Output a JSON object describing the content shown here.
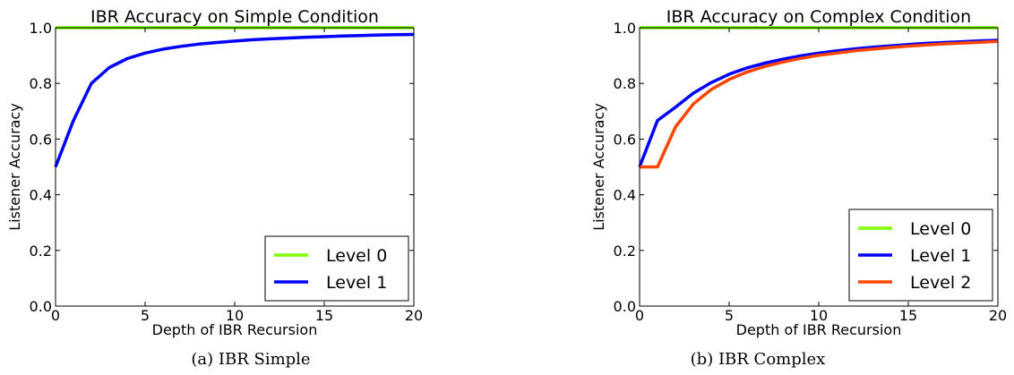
{
  "figures": [
    {
      "caption": "(a)  IBR Simple"
    },
    {
      "caption": "(b)  IBR Complex"
    }
  ],
  "chart_data": [
    {
      "type": "line",
      "title": "IBR Accuracy on Simple Condition",
      "xlabel": "Depth of IBR Recursion",
      "ylabel": "Listener Accuracy",
      "xlim": [
        0,
        20
      ],
      "ylim": [
        0.0,
        1.0
      ],
      "xticks": [
        "0",
        "5",
        "10",
        "15",
        "20"
      ],
      "yticks": [
        "0.0",
        "0.2",
        "0.4",
        "0.6",
        "0.8",
        "1.0"
      ],
      "grid": false,
      "legend_position": "bottom-right",
      "x": [
        0,
        1,
        2,
        3,
        4,
        5,
        6,
        7,
        8,
        9,
        10,
        11,
        12,
        13,
        14,
        15,
        16,
        17,
        18,
        19,
        20
      ],
      "series": [
        {
          "name": "Level 0",
          "color": "#7fff00",
          "values": [
            1.0,
            1.0,
            1.0,
            1.0,
            1.0,
            1.0,
            1.0,
            1.0,
            1.0,
            1.0,
            1.0,
            1.0,
            1.0,
            1.0,
            1.0,
            1.0,
            1.0,
            1.0,
            1.0,
            1.0,
            1.0
          ]
        },
        {
          "name": "Level 1",
          "color": "#0000ff",
          "values": [
            0.5,
            0.667,
            0.8,
            0.857,
            0.889,
            0.909,
            0.923,
            0.933,
            0.941,
            0.947,
            0.952,
            0.957,
            0.96,
            0.963,
            0.966,
            0.968,
            0.97,
            0.972,
            0.974,
            0.975,
            0.976
          ]
        }
      ]
    },
    {
      "type": "line",
      "title": "IBR Accuracy on Complex Condition",
      "xlabel": "Depth of IBR Recursion",
      "ylabel": "Listener Accuracy",
      "xlim": [
        0,
        20
      ],
      "ylim": [
        0.0,
        1.0
      ],
      "xticks": [
        "0",
        "5",
        "10",
        "15",
        "20"
      ],
      "yticks": [
        "0.0",
        "0.2",
        "0.4",
        "0.6",
        "0.8",
        "1.0"
      ],
      "grid": false,
      "legend_position": "bottom-right",
      "x": [
        0,
        1,
        2,
        3,
        4,
        5,
        6,
        7,
        8,
        9,
        10,
        11,
        12,
        13,
        14,
        15,
        16,
        17,
        18,
        19,
        20
      ],
      "series": [
        {
          "name": "Level 0",
          "color": "#7fff00",
          "values": [
            1.0,
            1.0,
            1.0,
            1.0,
            1.0,
            1.0,
            1.0,
            1.0,
            1.0,
            1.0,
            1.0,
            1.0,
            1.0,
            1.0,
            1.0,
            1.0,
            1.0,
            1.0,
            1.0,
            1.0,
            1.0
          ]
        },
        {
          "name": "Level 1",
          "color": "#0000ff",
          "values": [
            0.5,
            0.667,
            0.714,
            0.765,
            0.803,
            0.833,
            0.856,
            0.873,
            0.887,
            0.899,
            0.909,
            0.917,
            0.924,
            0.93,
            0.935,
            0.94,
            0.944,
            0.947,
            0.95,
            0.953,
            0.955
          ]
        },
        {
          "name": "Level 2",
          "color": "#ff4500",
          "values": [
            0.5,
            0.5,
            0.643,
            0.726,
            0.778,
            0.814,
            0.841,
            0.861,
            0.877,
            0.89,
            0.901,
            0.909,
            0.917,
            0.923,
            0.929,
            0.934,
            0.938,
            0.942,
            0.945,
            0.948,
            0.951
          ]
        }
      ]
    }
  ]
}
